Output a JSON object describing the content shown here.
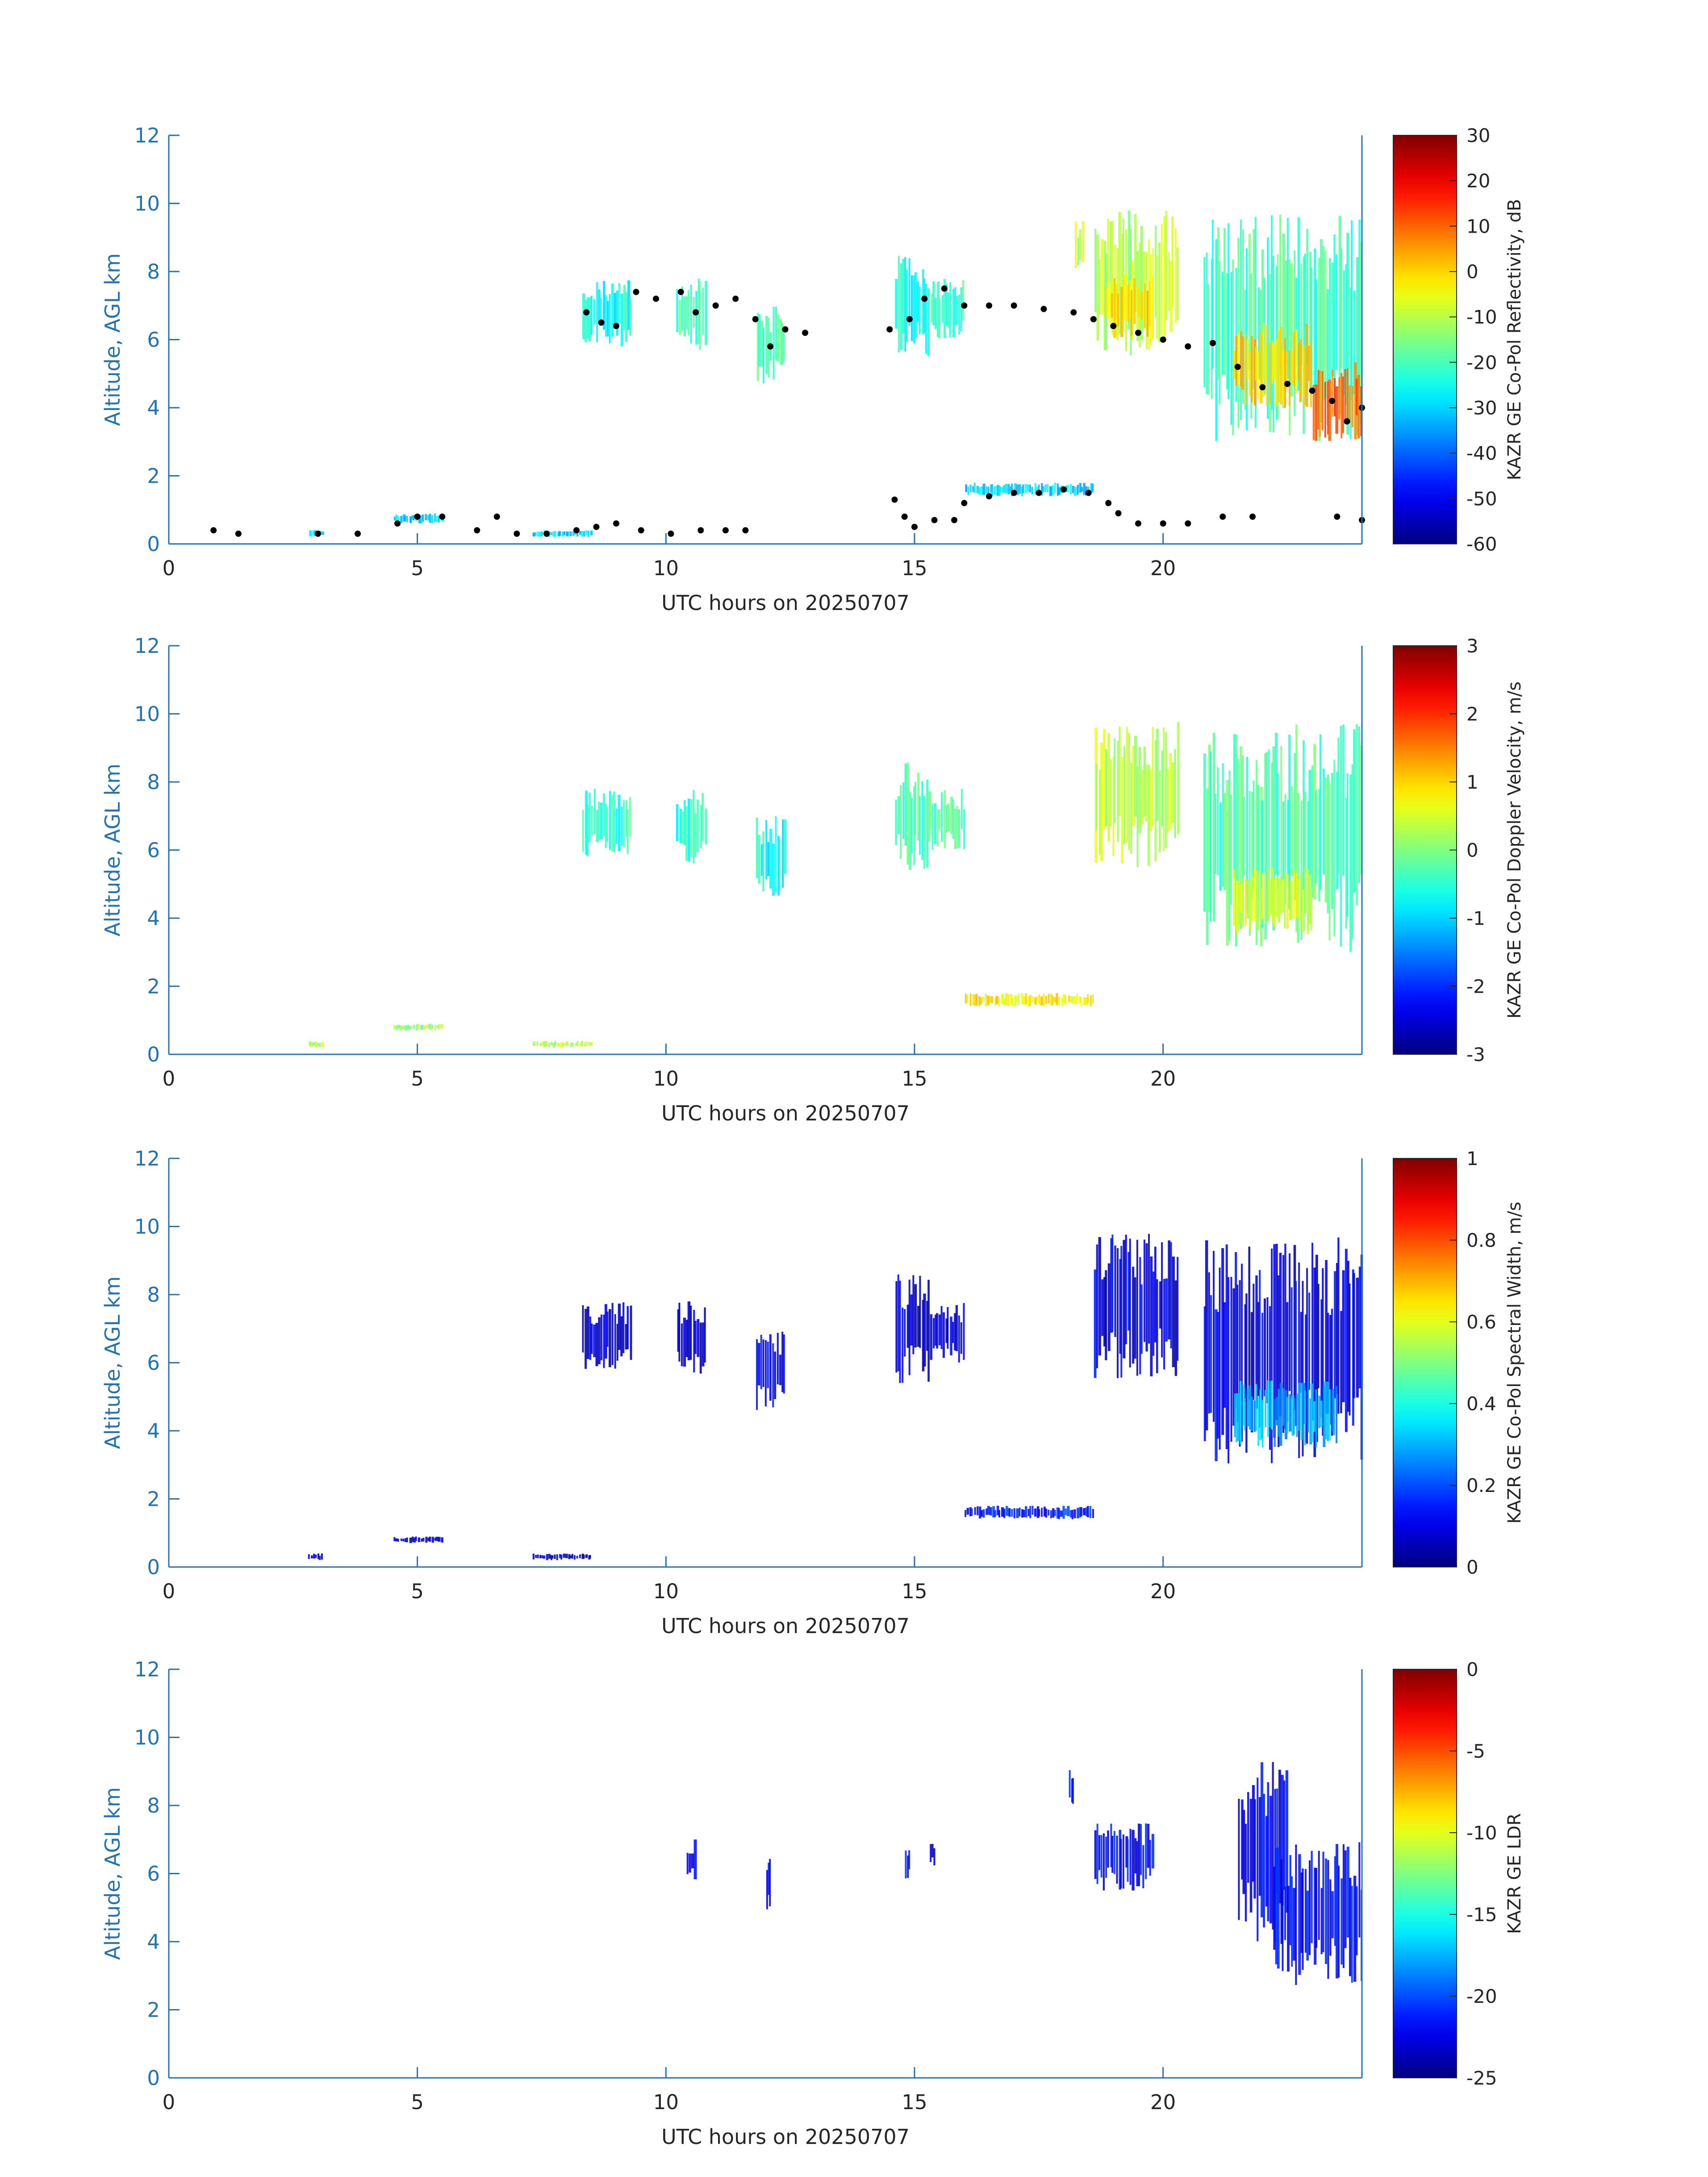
{
  "chart_data": [
    {
      "type": "heatmap",
      "title": "",
      "xlabel": "UTC hours on 20250707",
      "ylabel": "Altitude, AGL km",
      "xlim": [
        0,
        24
      ],
      "ylim": [
        0,
        12
      ],
      "xticks": [
        0,
        5,
        10,
        15,
        20
      ],
      "yticks": [
        0,
        2,
        4,
        6,
        8,
        10,
        12
      ],
      "grid": false,
      "colorbar": {
        "label": "KAZR GE Co-Pol Reflectivity, dB",
        "colormap": "jet",
        "range": [
          -60,
          30
        ],
        "ticks": [
          30,
          20,
          10,
          0,
          -10,
          -20,
          -30,
          -40,
          -50,
          -60
        ]
      },
      "echo_regions": [
        {
          "t0": 8.3,
          "t1": 9.3,
          "zmin": 5.8,
          "zmax": 7.8,
          "value": -25
        },
        {
          "t0": 10.2,
          "t1": 10.8,
          "zmin": 5.6,
          "zmax": 7.8,
          "value": -20
        },
        {
          "t0": 11.8,
          "t1": 12.4,
          "zmin": 4.6,
          "zmax": 7.0,
          "value": -20
        },
        {
          "t0": 14.6,
          "t1": 15.3,
          "zmin": 5.4,
          "zmax": 8.6,
          "value": -25
        },
        {
          "t0": 15.3,
          "t1": 16.0,
          "zmin": 6.0,
          "zmax": 7.8,
          "value": -20
        },
        {
          "t0": 18.2,
          "t1": 18.4,
          "zmin": 8.0,
          "zmax": 9.5,
          "value": -10
        },
        {
          "t0": 18.6,
          "t1": 20.3,
          "zmin": 5.5,
          "zmax": 9.8,
          "value": -10
        },
        {
          "t0": 18.8,
          "t1": 19.8,
          "zmin": 6.0,
          "zmax": 8.0,
          "value": 0
        },
        {
          "t0": 20.8,
          "t1": 24.0,
          "zmin": 3.0,
          "zmax": 9.7,
          "value": -20
        },
        {
          "t0": 21.4,
          "t1": 23.0,
          "zmin": 4.0,
          "zmax": 6.5,
          "value": 0
        },
        {
          "t0": 23.0,
          "t1": 24.0,
          "zmin": 3.0,
          "zmax": 5.5,
          "value": 10
        },
        {
          "t0": 16.0,
          "t1": 18.6,
          "zmin": 1.4,
          "zmax": 1.8,
          "value": -30
        },
        {
          "t0": 2.8,
          "t1": 3.1,
          "zmin": 0.2,
          "zmax": 0.4,
          "value": -30
        },
        {
          "t0": 4.5,
          "t1": 5.5,
          "zmin": 0.6,
          "zmax": 0.9,
          "value": -30
        },
        {
          "t0": 7.3,
          "t1": 8.5,
          "zmin": 0.2,
          "zmax": 0.4,
          "value": -30
        }
      ],
      "cloud_base_dots": [
        {
          "t": 0.9,
          "z": 0.4
        },
        {
          "t": 1.4,
          "z": 0.3
        },
        {
          "t": 3.0,
          "z": 0.3
        },
        {
          "t": 3.8,
          "z": 0.3
        },
        {
          "t": 4.6,
          "z": 0.6
        },
        {
          "t": 5.0,
          "z": 0.8
        },
        {
          "t": 5.5,
          "z": 0.8
        },
        {
          "t": 6.2,
          "z": 0.4
        },
        {
          "t": 6.6,
          "z": 0.8
        },
        {
          "t": 7.0,
          "z": 0.3
        },
        {
          "t": 7.6,
          "z": 0.3
        },
        {
          "t": 8.2,
          "z": 0.4
        },
        {
          "t": 8.6,
          "z": 0.5
        },
        {
          "t": 9.0,
          "z": 0.6
        },
        {
          "t": 9.5,
          "z": 0.4
        },
        {
          "t": 10.1,
          "z": 0.3
        },
        {
          "t": 10.7,
          "z": 0.4
        },
        {
          "t": 11.2,
          "z": 0.4
        },
        {
          "t": 11.6,
          "z": 0.4
        },
        {
          "t": 8.4,
          "z": 6.8
        },
        {
          "t": 8.7,
          "z": 6.5
        },
        {
          "t": 9.0,
          "z": 6.4
        },
        {
          "t": 9.4,
          "z": 7.4
        },
        {
          "t": 9.8,
          "z": 7.2
        },
        {
          "t": 10.3,
          "z": 7.4
        },
        {
          "t": 10.6,
          "z": 6.8
        },
        {
          "t": 11.0,
          "z": 7.0
        },
        {
          "t": 11.4,
          "z": 7.2
        },
        {
          "t": 11.8,
          "z": 6.6
        },
        {
          "t": 12.1,
          "z": 5.8
        },
        {
          "t": 12.4,
          "z": 6.3
        },
        {
          "t": 12.8,
          "z": 6.2
        },
        {
          "t": 14.5,
          "z": 6.3
        },
        {
          "t": 14.9,
          "z": 6.6
        },
        {
          "t": 15.2,
          "z": 7.2
        },
        {
          "t": 15.6,
          "z": 7.5
        },
        {
          "t": 16.0,
          "z": 7.0
        },
        {
          "t": 16.5,
          "z": 7.0
        },
        {
          "t": 17.0,
          "z": 7.0
        },
        {
          "t": 17.6,
          "z": 6.9
        },
        {
          "t": 18.2,
          "z": 6.8
        },
        {
          "t": 18.6,
          "z": 6.6
        },
        {
          "t": 19.0,
          "z": 6.4
        },
        {
          "t": 19.5,
          "z": 6.2
        },
        {
          "t": 20.0,
          "z": 6.0
        },
        {
          "t": 20.5,
          "z": 5.8
        },
        {
          "t": 21.0,
          "z": 5.9
        },
        {
          "t": 21.5,
          "z": 5.2
        },
        {
          "t": 22.0,
          "z": 4.6
        },
        {
          "t": 22.5,
          "z": 4.7
        },
        {
          "t": 23.0,
          "z": 4.5
        },
        {
          "t": 23.4,
          "z": 4.2
        },
        {
          "t": 23.7,
          "z": 3.6
        },
        {
          "t": 24.0,
          "z": 4.0
        },
        {
          "t": 14.6,
          "z": 1.3
        },
        {
          "t": 14.8,
          "z": 0.8
        },
        {
          "t": 15.0,
          "z": 0.5
        },
        {
          "t": 15.4,
          "z": 0.7
        },
        {
          "t": 15.8,
          "z": 0.7
        },
        {
          "t": 16.0,
          "z": 1.2
        },
        {
          "t": 16.5,
          "z": 1.4
        },
        {
          "t": 17.0,
          "z": 1.5
        },
        {
          "t": 17.5,
          "z": 1.5
        },
        {
          "t": 18.0,
          "z": 1.6
        },
        {
          "t": 18.5,
          "z": 1.5
        },
        {
          "t": 18.9,
          "z": 1.2
        },
        {
          "t": 19.1,
          "z": 0.9
        },
        {
          "t": 19.5,
          "z": 0.6
        },
        {
          "t": 20.0,
          "z": 0.6
        },
        {
          "t": 20.5,
          "z": 0.6
        },
        {
          "t": 21.2,
          "z": 0.8
        },
        {
          "t": 21.8,
          "z": 0.8
        },
        {
          "t": 23.5,
          "z": 0.8
        },
        {
          "t": 24.0,
          "z": 0.7
        }
      ]
    },
    {
      "type": "heatmap",
      "title": "",
      "xlabel": "UTC hours on 20250707",
      "ylabel": "Altitude, AGL km",
      "xlim": [
        0,
        24
      ],
      "ylim": [
        0,
        12
      ],
      "xticks": [
        0,
        5,
        10,
        15,
        20
      ],
      "yticks": [
        0,
        2,
        4,
        6,
        8,
        10,
        12
      ],
      "grid": false,
      "colorbar": {
        "label": "KAZR GE Co-Pol Doppler Velocity, m/s",
        "colormap": "jet",
        "range": [
          -3,
          3
        ],
        "ticks": [
          3,
          2,
          1,
          0,
          -1,
          -2,
          -3
        ]
      },
      "echo_regions": [
        {
          "t0": 8.3,
          "t1": 9.3,
          "zmin": 5.8,
          "zmax": 7.8,
          "value": -0.5
        },
        {
          "t0": 10.2,
          "t1": 10.8,
          "zmin": 5.6,
          "zmax": 7.8,
          "value": -0.5
        },
        {
          "t0": 11.8,
          "t1": 12.4,
          "zmin": 4.6,
          "zmax": 7.0,
          "value": -0.7
        },
        {
          "t0": 14.6,
          "t1": 15.3,
          "zmin": 5.4,
          "zmax": 8.6,
          "value": -0.3
        },
        {
          "t0": 15.3,
          "t1": 16.0,
          "zmin": 6.0,
          "zmax": 7.8,
          "value": -0.2
        },
        {
          "t0": 18.6,
          "t1": 20.3,
          "zmin": 5.5,
          "zmax": 9.8,
          "value": 0.3
        },
        {
          "t0": 20.8,
          "t1": 24.0,
          "zmin": 3.0,
          "zmax": 9.7,
          "value": -0.3
        },
        {
          "t0": 21.4,
          "t1": 23.0,
          "zmin": 3.5,
          "zmax": 5.5,
          "value": 0.5
        },
        {
          "t0": 16.0,
          "t1": 18.6,
          "zmin": 1.4,
          "zmax": 1.8,
          "value": 0.8
        },
        {
          "t0": 2.8,
          "t1": 3.1,
          "zmin": 0.2,
          "zmax": 0.4,
          "value": 0.2
        },
        {
          "t0": 4.5,
          "t1": 5.5,
          "zmin": 0.7,
          "zmax": 0.9,
          "value": 0.2
        },
        {
          "t0": 7.3,
          "t1": 8.5,
          "zmin": 0.2,
          "zmax": 0.4,
          "value": 0.3
        }
      ]
    },
    {
      "type": "heatmap",
      "title": "",
      "xlabel": "UTC hours on 20250707",
      "ylabel": "Altitude, AGL km",
      "xlim": [
        0,
        24
      ],
      "ylim": [
        0,
        12
      ],
      "xticks": [
        0,
        5,
        10,
        15,
        20
      ],
      "yticks": [
        0,
        2,
        4,
        6,
        8,
        10,
        12
      ],
      "grid": false,
      "colorbar": {
        "label": "KAZR GE Co-Pol Spectral Width, m/s",
        "colormap": "jet",
        "range": [
          0,
          1
        ],
        "ticks": [
          1,
          0.8,
          0.6,
          0.4,
          0.2,
          0
        ]
      },
      "echo_regions": [
        {
          "t0": 8.3,
          "t1": 9.3,
          "zmin": 5.8,
          "zmax": 7.8,
          "value": 0.08
        },
        {
          "t0": 10.2,
          "t1": 10.8,
          "zmin": 5.6,
          "zmax": 7.8,
          "value": 0.08
        },
        {
          "t0": 11.8,
          "t1": 12.4,
          "zmin": 4.6,
          "zmax": 7.0,
          "value": 0.1
        },
        {
          "t0": 14.6,
          "t1": 15.3,
          "zmin": 5.4,
          "zmax": 8.6,
          "value": 0.08
        },
        {
          "t0": 15.3,
          "t1": 16.0,
          "zmin": 6.0,
          "zmax": 7.8,
          "value": 0.08
        },
        {
          "t0": 18.6,
          "t1": 20.3,
          "zmin": 5.5,
          "zmax": 9.8,
          "value": 0.1
        },
        {
          "t0": 20.8,
          "t1": 24.0,
          "zmin": 3.0,
          "zmax": 9.7,
          "value": 0.1
        },
        {
          "t0": 21.4,
          "t1": 23.5,
          "zmin": 3.5,
          "zmax": 5.5,
          "value": 0.3
        },
        {
          "t0": 16.0,
          "t1": 18.6,
          "zmin": 1.4,
          "zmax": 1.8,
          "value": 0.15
        },
        {
          "t0": 2.8,
          "t1": 3.1,
          "zmin": 0.2,
          "zmax": 0.4,
          "value": 0.08
        },
        {
          "t0": 4.5,
          "t1": 5.5,
          "zmin": 0.7,
          "zmax": 0.9,
          "value": 0.08
        },
        {
          "t0": 7.3,
          "t1": 8.5,
          "zmin": 0.2,
          "zmax": 0.4,
          "value": 0.08
        }
      ]
    },
    {
      "type": "heatmap",
      "title": "",
      "xlabel": "UTC hours on 20250707",
      "ylabel": "Altitude, AGL km",
      "xlim": [
        0,
        24
      ],
      "ylim": [
        0,
        12
      ],
      "xticks": [
        0,
        5,
        10,
        15,
        20
      ],
      "yticks": [
        0,
        2,
        4,
        6,
        8,
        10,
        12
      ],
      "grid": false,
      "colorbar": {
        "label": "KAZR GE LDR",
        "colormap": "jet",
        "range": [
          -25,
          0
        ],
        "ticks": [
          0,
          -5,
          -10,
          -15,
          -20,
          -25
        ]
      },
      "echo_regions": [
        {
          "t0": 10.4,
          "t1": 10.6,
          "zmin": 5.8,
          "zmax": 7.0,
          "value": -22
        },
        {
          "t0": 12.0,
          "t1": 12.1,
          "zmin": 4.8,
          "zmax": 6.5,
          "value": -22
        },
        {
          "t0": 14.8,
          "t1": 14.9,
          "zmin": 5.8,
          "zmax": 6.8,
          "value": -22
        },
        {
          "t0": 15.3,
          "t1": 15.4,
          "zmin": 6.2,
          "zmax": 7.0,
          "value": -22
        },
        {
          "t0": 18.1,
          "t1": 18.2,
          "zmin": 8.0,
          "zmax": 9.1,
          "value": -22
        },
        {
          "t0": 18.6,
          "t1": 19.8,
          "zmin": 5.5,
          "zmax": 7.5,
          "value": -22
        },
        {
          "t0": 21.5,
          "t1": 22.5,
          "zmin": 4.0,
          "zmax": 9.3,
          "value": -22
        },
        {
          "t0": 22.2,
          "t1": 24.0,
          "zmin": 2.6,
          "zmax": 7.0,
          "value": -22
        }
      ]
    }
  ]
}
